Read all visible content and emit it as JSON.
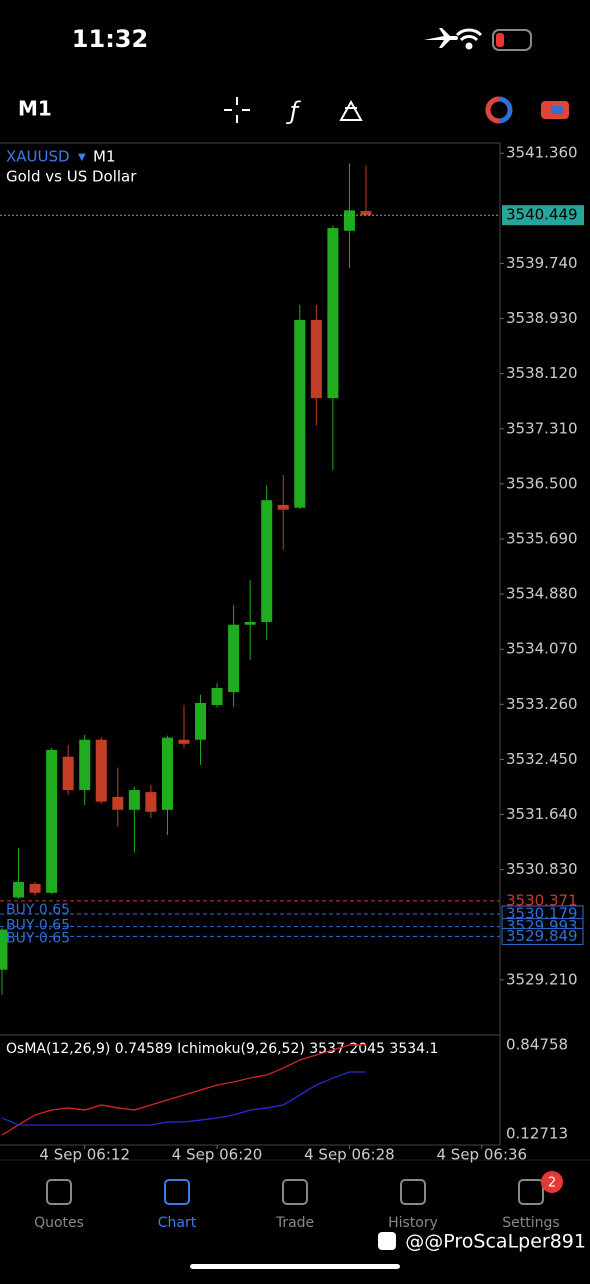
{
  "status_bar": {
    "time": "11:32"
  },
  "toolbar": {
    "timeframe": "M1"
  },
  "chart_data": {
    "type": "candlestick",
    "symbol": "XAUUSD",
    "timeframe": "M1",
    "description": "Gold vs US Dollar",
    "open": [
      3529.36,
      3530.42,
      3530.62,
      3530.49,
      3532.49,
      3532.0,
      3532.74,
      3531.9,
      3531.71,
      3531.97,
      3531.71,
      3532.74,
      3532.74,
      3533.25,
      3533.44,
      3534.43,
      3534.47,
      3536.19,
      3536.15,
      3538.91,
      3537.76,
      3540.22,
      3540.51
    ],
    "high": [
      3529.97,
      3531.15,
      3530.65,
      3532.62,
      3532.66,
      3532.81,
      3532.78,
      3532.33,
      3532.05,
      3532.08,
      3532.8,
      3533.25,
      3533.4,
      3533.57,
      3534.72,
      3535.09,
      3536.48,
      3536.63,
      3539.13,
      3539.13,
      3540.3,
      3541.21,
      3541.18
    ],
    "low": [
      3528.99,
      3530.4,
      3530.45,
      3530.47,
      3531.93,
      3531.78,
      3531.8,
      3531.46,
      3531.08,
      3531.59,
      3531.34,
      3532.62,
      3532.37,
      3533.21,
      3533.22,
      3533.91,
      3534.21,
      3535.53,
      3536.13,
      3537.36,
      3536.7,
      3539.67,
      3540.44
    ],
    "close": [
      3529.95,
      3530.65,
      3530.49,
      3532.59,
      3532.0,
      3532.74,
      3531.83,
      3531.71,
      3532.0,
      3531.68,
      3532.77,
      3532.68,
      3533.28,
      3533.5,
      3534.43,
      3534.47,
      3536.26,
      3536.12,
      3538.91,
      3537.76,
      3540.26,
      3540.52,
      3540.449
    ],
    "up_color": "#1fad1f",
    "down_color": "#c33d27",
    "ylim": [
      3528.4,
      3541.51
    ],
    "yticks": [
      {
        "value": 3541.36,
        "label": "3541.360"
      },
      {
        "value": 3539.74,
        "label": "3539.740"
      },
      {
        "value": 3538.93,
        "label": "3538.930"
      },
      {
        "value": 3538.12,
        "label": "3538.120"
      },
      {
        "value": 3537.31,
        "label": "3537.310"
      },
      {
        "value": 3536.5,
        "label": "3536.500"
      },
      {
        "value": 3535.69,
        "label": "3535.690"
      },
      {
        "value": 3534.88,
        "label": "3534.880"
      },
      {
        "value": 3534.07,
        "label": "3534.070"
      },
      {
        "value": 3533.26,
        "label": "3533.260"
      },
      {
        "value": 3532.45,
        "label": "3532.450"
      },
      {
        "value": 3531.64,
        "label": "3531.640"
      },
      {
        "value": 3530.83,
        "label": "3530.830"
      },
      {
        "value": 3529.21,
        "label": "3529.210"
      }
    ],
    "xlim": [
      -0.12,
      30.1
    ],
    "xticks": [
      {
        "value": 5,
        "label": "4 Sep 06:12"
      },
      {
        "value": 13,
        "label": "4 Sep 06:20"
      },
      {
        "value": 21,
        "label": "4 Sep 06:28"
      },
      {
        "value": 29,
        "label": "4 Sep 06:36"
      }
    ],
    "bid": 3540.449,
    "bid_color": "#26a69a",
    "orders": [
      {
        "price": 3530.371,
        "color": "#c33d27"
      },
      {
        "label": "BUY 0.65",
        "price": 3530.179,
        "color": "#2f6fd6"
      },
      {
        "label": "BUY 0.65",
        "price": 3529.993,
        "color": "#2f6fd6"
      },
      {
        "label": "BUY 0.65",
        "price": 3529.849,
        "color": "#2f6fd6"
      }
    ],
    "indicator": {
      "title": "OsMA(12,26,9) 0.74589 Ichimoku(9,26,52) 3537.2045 3534.1",
      "ylim": [
        0.038,
        0.888
      ],
      "yticks": [
        0.84758,
        0.12713
      ],
      "series": [
        {
          "color": "#d3261f",
          "values": [
            0.119,
            0.201,
            0.281,
            0.321,
            0.338,
            0.321,
            0.362,
            0.338,
            0.321,
            0.362,
            0.402,
            0.443,
            0.483,
            0.524,
            0.548,
            0.58,
            0.605,
            0.661,
            0.726,
            0.767,
            0.807,
            0.848,
            0.848
          ]
        },
        {
          "color": "#2a2ad8",
          "values": [
            0.257,
            0.2,
            0.2,
            0.2,
            0.2,
            0.2,
            0.2,
            0.2,
            0.2,
            0.2,
            0.224,
            0.224,
            0.24,
            0.257,
            0.281,
            0.321,
            0.338,
            0.362,
            0.443,
            0.524,
            0.58,
            0.629,
            0.629
          ]
        }
      ]
    }
  },
  "tab_bar": {
    "tabs": [
      "Quotes",
      "Chart",
      "Trade",
      "History",
      "Settings"
    ],
    "active": 1,
    "badge": 2
  },
  "watermark": "@@ProScaLper891"
}
